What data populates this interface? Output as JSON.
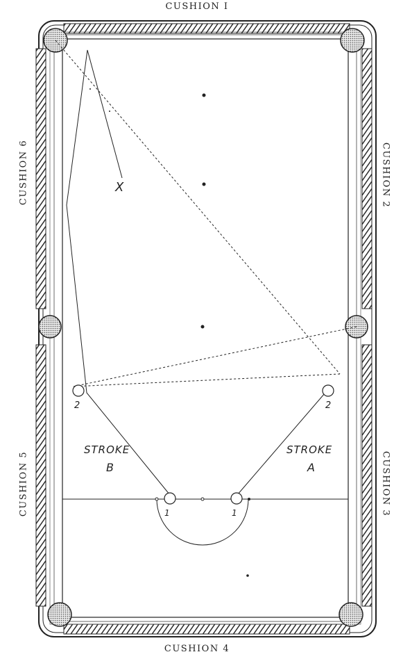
{
  "cushions": {
    "c1": "CUSHION I",
    "c2": "CUSHION 2",
    "c3": "CUSHION 3",
    "c4": "CUSHION 4",
    "c5": "CUSHION 5",
    "c6": "CUSHION 6"
  },
  "strokes": {
    "a": {
      "word": "STROKE",
      "letter": "A"
    },
    "b": {
      "word": "STROKE",
      "letter": "B"
    }
  },
  "ball_labels": {
    "b1_left": "1",
    "b1_right": "1",
    "b2_left": "2",
    "b2_right": "2"
  },
  "target_mark": "X",
  "colors": {
    "ink": "#222222",
    "pocket": "#cfcfcf",
    "cushion": "#2a2a2a"
  }
}
